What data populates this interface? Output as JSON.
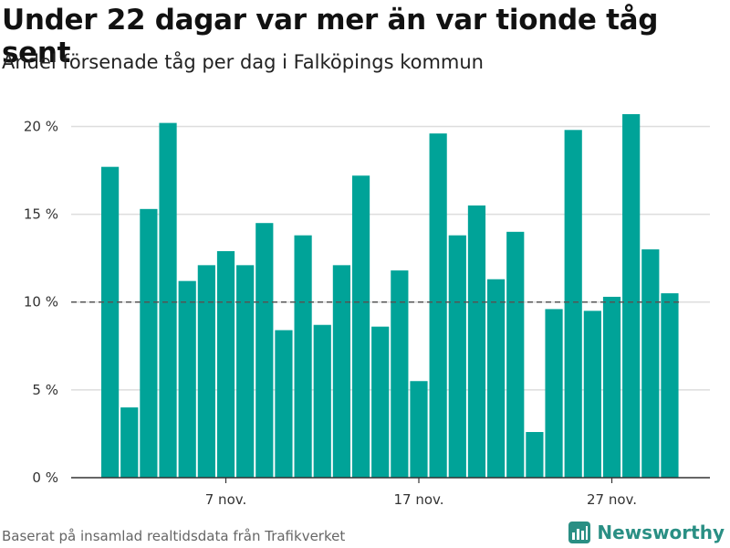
{
  "title": "Under 22 dagar var mer än var tionde tåg sent",
  "subtitle": "Andel försenade tåg per dag i Falköpings kommun",
  "source": "Baserat på insamlad realtidsdata från Trafikverket",
  "brand": {
    "name": "Newsworthy",
    "icon": "newsworthy-logo-icon",
    "color": "#2a8f84"
  },
  "colors": {
    "bar": "#00a398",
    "reference_line": "#555555",
    "grid": "#dddddd",
    "axis": "#333333"
  },
  "chart_data": {
    "type": "bar",
    "title": "Under 22 dagar var mer än var tionde tåg sent",
    "subtitle": "Andel försenade tåg per dag i Falköpings kommun",
    "xlabel": "",
    "ylabel": "",
    "ylim": [
      0,
      22
    ],
    "yticks": [
      0,
      5,
      10,
      15,
      20
    ],
    "ytick_labels": [
      "0 %",
      "5 %",
      "10 %",
      "15 %",
      "20 %"
    ],
    "x": [
      "1 nov.",
      "2 nov.",
      "3 nov.",
      "4 nov.",
      "5 nov.",
      "6 nov.",
      "7 nov.",
      "8 nov.",
      "9 nov.",
      "10 nov.",
      "11 nov.",
      "12 nov.",
      "13 nov.",
      "14 nov.",
      "15 nov.",
      "16 nov.",
      "17 nov.",
      "18 nov.",
      "19 nov.",
      "20 nov.",
      "21 nov.",
      "22 nov.",
      "23 nov.",
      "24 nov.",
      "25 nov.",
      "26 nov.",
      "27 nov.",
      "28 nov.",
      "29 nov.",
      "30 nov."
    ],
    "xtick_labels": [
      {
        "index": 6,
        "label": "7 nov."
      },
      {
        "index": 16,
        "label": "17 nov."
      },
      {
        "index": 26,
        "label": "27 nov."
      }
    ],
    "values": [
      17.7,
      4.0,
      15.3,
      20.2,
      11.2,
      12.1,
      12.9,
      12.1,
      14.5,
      8.4,
      13.8,
      8.7,
      12.1,
      17.2,
      8.6,
      11.8,
      5.5,
      19.6,
      13.8,
      15.5,
      11.3,
      14.0,
      2.6,
      9.6,
      19.8,
      9.5,
      10.3,
      20.7,
      13.0,
      10.5
    ],
    "reference_line": {
      "value": 10,
      "style": "dashed"
    },
    "grid": true,
    "legend": "none"
  }
}
